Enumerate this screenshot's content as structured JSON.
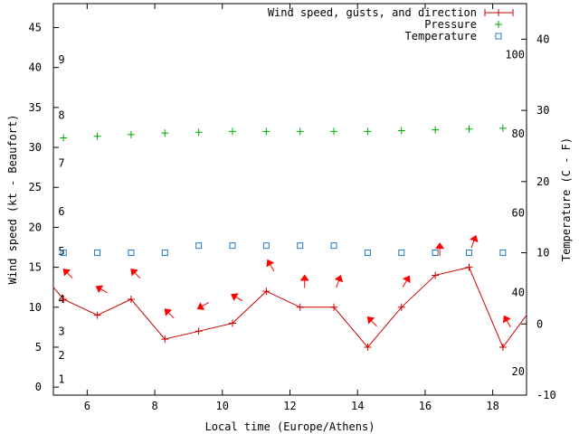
{
  "chart_data": {
    "type": "line",
    "xlabel": "Local time (Europe/Athens)",
    "ylabel_left": "Wind speed (kt - Beaufort)",
    "ylabel_right": "Temperature (C - F)",
    "xlim": [
      5,
      19
    ],
    "ylim_left": [
      -1,
      48
    ],
    "ylim_right": [
      -10,
      45
    ],
    "x_ticks": [
      6,
      8,
      10,
      12,
      14,
      16,
      18
    ],
    "y_left_ticks": [
      0,
      5,
      10,
      15,
      20,
      25,
      30,
      35,
      40,
      45
    ],
    "y_right_ticks": [
      -10,
      0,
      10,
      20,
      30,
      40
    ],
    "beaufort_labels": [
      {
        "label": "1",
        "kt": 1
      },
      {
        "label": "2",
        "kt": 4
      },
      {
        "label": "3",
        "kt": 7
      },
      {
        "label": "4",
        "kt": 11
      },
      {
        "label": "5",
        "kt": 17
      },
      {
        "label": "6",
        "kt": 22
      },
      {
        "label": "7",
        "kt": 28
      },
      {
        "label": "8",
        "kt": 34
      },
      {
        "label": "9",
        "kt": 41
      }
    ],
    "fahrenheit_labels": [
      {
        "label": "20",
        "c": -6.7
      },
      {
        "label": "40",
        "c": 4.4
      },
      {
        "label": "60",
        "c": 15.6
      },
      {
        "label": "80",
        "c": 26.7
      },
      {
        "label": "100",
        "c": 37.8
      }
    ],
    "legend_position": "top-right",
    "series": [
      {
        "name": "Wind speed, gusts, and direction",
        "color": "#cc0000",
        "axis": "left",
        "x": [
          5.3,
          6.3,
          7.3,
          8.3,
          9.3,
          10.3,
          11.3,
          12.3,
          13.3,
          14.3,
          15.3,
          16.3,
          17.3,
          18.3
        ],
        "values": [
          11,
          9,
          11,
          6,
          7,
          8,
          12,
          10,
          10,
          5,
          10,
          14,
          15,
          5
        ],
        "direction_deg": [
          315,
          300,
          315,
          315,
          240,
          300,
          330,
          360,
          20,
          315,
          30,
          360,
          20,
          330
        ]
      },
      {
        "name": "Pressure",
        "color": "#00aa00",
        "axis": "left",
        "x": [
          5.3,
          6.3,
          7.3,
          8.3,
          9.3,
          10.3,
          11.3,
          12.3,
          13.3,
          14.3,
          15.3,
          16.3,
          17.3,
          18.3
        ],
        "values": [
          31.2,
          31.4,
          31.6,
          31.8,
          31.9,
          32.0,
          32.0,
          32.0,
          32.0,
          32.0,
          32.1,
          32.2,
          32.3,
          32.4
        ]
      },
      {
        "name": "Temperature",
        "color": "#1f78c8",
        "axis": "right",
        "x": [
          5.3,
          6.3,
          7.3,
          8.3,
          9.3,
          10.3,
          11.3,
          12.3,
          13.3,
          14.3,
          15.3,
          16.3,
          17.3,
          18.3
        ],
        "values": [
          10,
          10,
          10,
          10,
          11,
          11,
          11,
          11,
          11,
          10,
          10,
          10,
          10,
          10
        ]
      }
    ]
  }
}
